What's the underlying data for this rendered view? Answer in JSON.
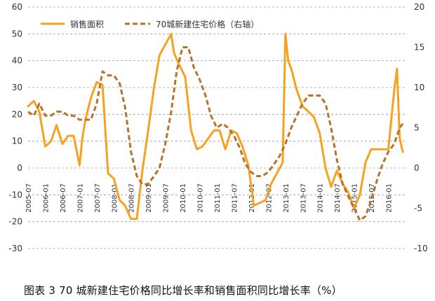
{
  "caption": "图表 3 70 城新建住宅价格同比增长率和销售面积同比增长率（%）",
  "chart_data": {
    "type": "line",
    "legend_position": "top-left",
    "grid": "horizontal-dashed",
    "colors": {
      "sales": "#F5A21E",
      "price": "#B8722C",
      "grid": "#9a9a9a"
    },
    "left_axis": {
      "ylim": [
        -30,
        60
      ],
      "ticks": [
        -30,
        -20,
        -10,
        0,
        10,
        20,
        30,
        40,
        50,
        60
      ]
    },
    "right_axis": {
      "ylim": [
        -10,
        20
      ],
      "ticks": [
        -10,
        -5,
        0,
        5,
        10,
        15,
        20
      ]
    },
    "x_labels": [
      "2005-07",
      "2006-01",
      "2006-07",
      "2007-01",
      "2007-07",
      "2008-01",
      "2008-07",
      "2009-01",
      "2009-07",
      "2010-01",
      "2010-07",
      "2011-01",
      "2011-07",
      "2012-01",
      "2012-07",
      "2013-01",
      "2013-07",
      "2014-01",
      "2014-07",
      "2015-01",
      "2015-07",
      "2016-01"
    ],
    "series": [
      {
        "name": "销售面积",
        "axis": "left",
        "style": "solid",
        "x": [
          2005.5,
          2005.67,
          2005.83,
          2006.0,
          2006.17,
          2006.33,
          2006.5,
          2006.67,
          2006.83,
          2007.0,
          2007.08,
          2007.17,
          2007.33,
          2007.5,
          2007.67,
          2007.83,
          2008.0,
          2008.17,
          2008.33,
          2008.5,
          2008.67,
          2008.83,
          2009.0,
          2009.17,
          2009.33,
          2009.5,
          2009.67,
          2009.75,
          2009.92,
          2010.08,
          2010.25,
          2010.42,
          2010.58,
          2010.75,
          2010.92,
          2011.08,
          2011.25,
          2011.42,
          2011.58,
          2011.75,
          2011.92,
          2012.08,
          2012.25,
          2012.42,
          2012.58,
          2012.75,
          2012.92,
          2013.0,
          2013.08,
          2013.17,
          2013.33,
          2013.5,
          2013.67,
          2013.83,
          2014.0,
          2014.17,
          2014.33,
          2014.5,
          2014.67,
          2014.83,
          2015.0,
          2015.17,
          2015.33,
          2015.5,
          2015.67,
          2015.83,
          2016.0,
          2016.17,
          2016.25,
          2016.33,
          2016.42
        ],
        "values": [
          23,
          25,
          21,
          8,
          10,
          16,
          9,
          12,
          12,
          1,
          11,
          18,
          26,
          32,
          31,
          -2,
          -4,
          -12,
          -14,
          -19,
          -19,
          -1,
          14,
          30,
          42,
          46,
          50,
          43,
          38,
          34,
          14,
          7,
          8,
          11,
          14,
          14,
          7,
          14,
          13,
          8,
          1,
          -14,
          -13,
          -12,
          -6,
          -2,
          2,
          50,
          40,
          37,
          29,
          23,
          21,
          19,
          13,
          0,
          -7,
          -1,
          -6,
          -9,
          -15,
          -10,
          2,
          7,
          7,
          7,
          7,
          29,
          37,
          11,
          6
        ]
      },
      {
        "name": "70城新建住宅价格（右轴）",
        "axis": "right",
        "style": "dashed",
        "x": [
          2005.5,
          2005.67,
          2005.83,
          2006.0,
          2006.17,
          2006.33,
          2006.5,
          2006.67,
          2006.83,
          2007.0,
          2007.17,
          2007.33,
          2007.5,
          2007.67,
          2007.83,
          2008.0,
          2008.17,
          2008.33,
          2008.5,
          2008.67,
          2008.83,
          2009.0,
          2009.17,
          2009.33,
          2009.5,
          2009.67,
          2009.83,
          2010.0,
          2010.17,
          2010.33,
          2010.5,
          2010.67,
          2010.83,
          2011.0,
          2011.17,
          2011.33,
          2011.5,
          2011.67,
          2011.83,
          2012.0,
          2012.17,
          2012.33,
          2012.5,
          2012.67,
          2012.83,
          2013.0,
          2013.17,
          2013.33,
          2013.5,
          2013.67,
          2013.83,
          2014.0,
          2014.17,
          2014.33,
          2014.5,
          2014.67,
          2014.83,
          2015.0,
          2015.17,
          2015.33,
          2015.5,
          2015.67,
          2015.83,
          2016.0,
          2016.17,
          2016.33,
          2016.42
        ],
        "values": [
          7,
          6.5,
          8,
          6.5,
          6.5,
          7,
          7,
          6.5,
          6.5,
          6,
          6,
          6,
          8,
          12,
          11.5,
          11.5,
          10.5,
          7.5,
          2,
          -1,
          -2,
          -2,
          -1,
          0,
          3,
          7,
          12,
          15,
          15,
          12.5,
          11,
          9,
          6.5,
          5,
          5.5,
          5,
          4,
          2.5,
          0.5,
          -0.5,
          -1,
          -1,
          -0.5,
          0.5,
          1.5,
          3,
          5,
          6.5,
          8,
          9,
          9,
          9,
          8,
          5,
          1,
          -2,
          -3.5,
          -5,
          -6.5,
          -6,
          -4,
          -1.5,
          0.5,
          2,
          3,
          5,
          5.5
        ]
      }
    ]
  }
}
